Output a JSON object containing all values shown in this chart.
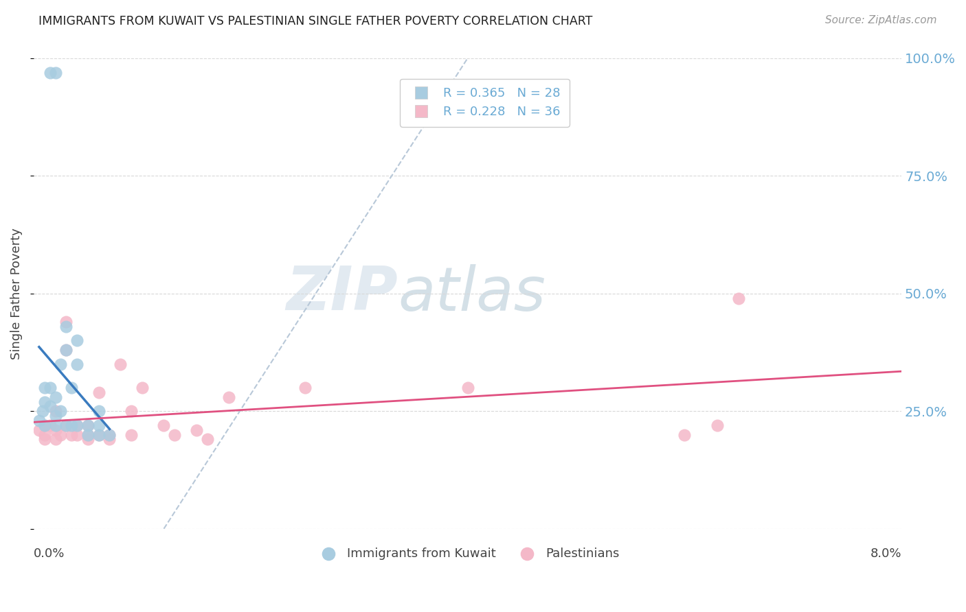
{
  "title": "IMMIGRANTS FROM KUWAIT VS PALESTINIAN SINGLE FATHER POVERTY CORRELATION CHART",
  "source": "Source: ZipAtlas.com",
  "ylabel": "Single Father Poverty",
  "xlim": [
    0.0,
    0.08
  ],
  "ylim": [
    0.0,
    1.0
  ],
  "R_kuwait": 0.365,
  "N_kuwait": 28,
  "R_palestinians": 0.228,
  "N_palestinians": 36,
  "kuwait_color": "#a8cce0",
  "palestine_color": "#f4b8c8",
  "kuwait_line_color": "#3a7bbf",
  "palestine_line_color": "#e05080",
  "watermark_zip": "ZIP",
  "watermark_atlas": "atlas",
  "background_color": "#ffffff",
  "grid_color": "#d8d8d8",
  "right_axis_color": "#6aaad4",
  "kuwait_x": [
    0.0005,
    0.0008,
    0.001,
    0.001,
    0.001,
    0.0015,
    0.0015,
    0.002,
    0.002,
    0.002,
    0.0025,
    0.0025,
    0.003,
    0.003,
    0.003,
    0.0035,
    0.0035,
    0.004,
    0.004,
    0.004,
    0.005,
    0.005,
    0.006,
    0.006,
    0.006,
    0.007,
    0.0015,
    0.002
  ],
  "kuwait_y": [
    0.23,
    0.25,
    0.27,
    0.3,
    0.22,
    0.26,
    0.3,
    0.22,
    0.24,
    0.28,
    0.25,
    0.35,
    0.38,
    0.43,
    0.22,
    0.3,
    0.22,
    0.35,
    0.4,
    0.22,
    0.2,
    0.22,
    0.2,
    0.25,
    0.22,
    0.2,
    0.97,
    0.97
  ],
  "pal_x": [
    0.0005,
    0.001,
    0.001,
    0.001,
    0.0015,
    0.002,
    0.002,
    0.002,
    0.0025,
    0.003,
    0.003,
    0.003,
    0.0035,
    0.004,
    0.004,
    0.005,
    0.005,
    0.005,
    0.006,
    0.006,
    0.007,
    0.007,
    0.008,
    0.009,
    0.009,
    0.01,
    0.012,
    0.013,
    0.015,
    0.016,
    0.018,
    0.025,
    0.04,
    0.06,
    0.063,
    0.065
  ],
  "pal_y": [
    0.21,
    0.2,
    0.22,
    0.19,
    0.22,
    0.21,
    0.19,
    0.25,
    0.2,
    0.22,
    0.38,
    0.44,
    0.2,
    0.22,
    0.2,
    0.19,
    0.22,
    0.2,
    0.2,
    0.29,
    0.19,
    0.2,
    0.35,
    0.2,
    0.25,
    0.3,
    0.22,
    0.2,
    0.21,
    0.19,
    0.28,
    0.3,
    0.3,
    0.2,
    0.22,
    0.49
  ]
}
